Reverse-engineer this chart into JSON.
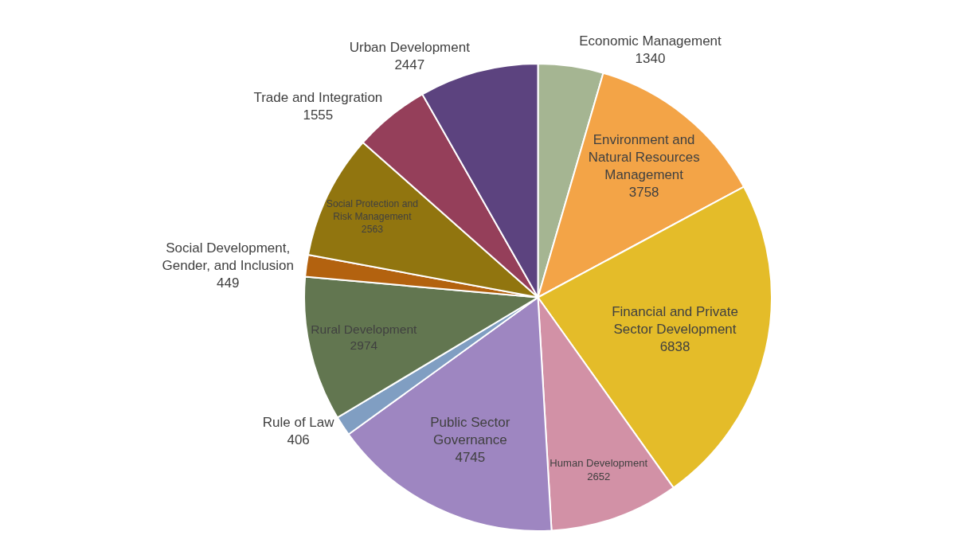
{
  "chart_data": {
    "type": "pie",
    "categories": [
      "Economic Management",
      "Environment and Natural Resources Management",
      "Financial and Private Sector Development",
      "Human Development",
      "Public Sector Governance",
      "Rule of Law",
      "Rural Development",
      "Social Development, Gender, and Inclusion",
      "Social Protection and Risk Management",
      "Trade and Integration",
      "Urban Development"
    ],
    "values": [
      1340,
      3758,
      6838,
      2652,
      4745,
      406,
      2974,
      449,
      2563,
      1555,
      2447
    ],
    "colors": [
      "#a5b592",
      "#f3a447",
      "#e4bc29",
      "#d291a6",
      "#9e86c1",
      "#809ec2",
      "#627650",
      "#b3620f",
      "#91750f",
      "#953f5a",
      "#5c437f"
    ],
    "data_labels": true,
    "legend": false
  }
}
